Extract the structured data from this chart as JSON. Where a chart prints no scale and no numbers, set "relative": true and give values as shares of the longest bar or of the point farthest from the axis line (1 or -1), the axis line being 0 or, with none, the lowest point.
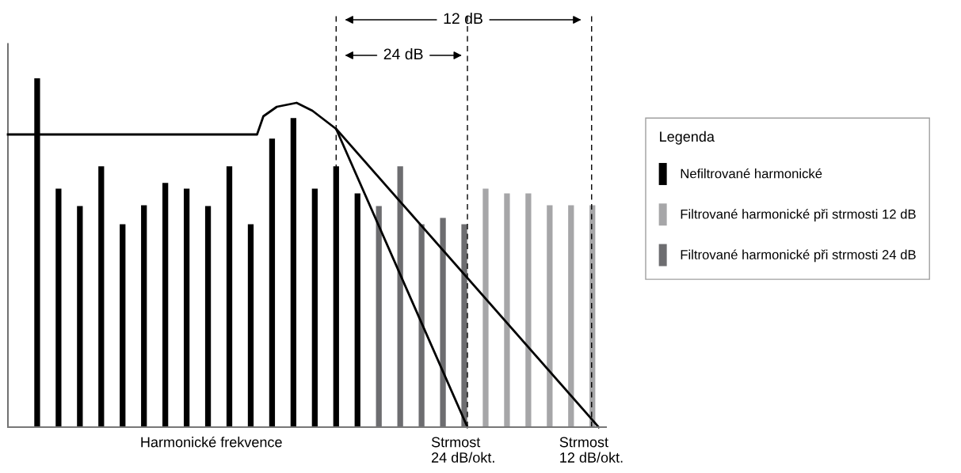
{
  "chart_data": {
    "type": "bar",
    "relative": true,
    "stacked": true,
    "xlabel": "Harmonické frekvence",
    "legend_title": "Legenda",
    "legend": "right",
    "categories": [
      null,
      null,
      null,
      null,
      null,
      null,
      null,
      null,
      null,
      null,
      null,
      null,
      null,
      null,
      null,
      null,
      null,
      null,
      null,
      null,
      null,
      null,
      null,
      null,
      null,
      null,
      null
    ],
    "series": [
      {
        "name": "Nefiltrované harmonické",
        "color": "#000000",
        "values": [
          1.0,
          0.684,
          0.634,
          0.748,
          0.582,
          0.636,
          0.7,
          0.684,
          0.634,
          0.748,
          0.582,
          0.827,
          0.886,
          0.684,
          0.748,
          0.67,
          null,
          null,
          null,
          null,
          null,
          null,
          null,
          null,
          null,
          null,
          null
        ]
      },
      {
        "name": "Filtrované harmonické při strmosti 12 dB",
        "color": "#a6a6a8",
        "values": [
          null,
          null,
          null,
          null,
          null,
          null,
          null,
          null,
          null,
          null,
          null,
          null,
          null,
          null,
          null,
          null,
          null,
          null,
          null,
          null,
          null,
          0.684,
          0.67,
          0.67,
          0.636,
          0.636,
          0.636
        ]
      },
      {
        "name": "Filtrované harmonické při strmosti 24 dB",
        "color": "#6d6d70",
        "values": [
          null,
          null,
          null,
          null,
          null,
          null,
          null,
          null,
          null,
          null,
          null,
          null,
          null,
          null,
          null,
          null,
          0.634,
          0.748,
          0.582,
          0.6,
          0.582,
          null,
          null,
          null,
          null,
          null,
          null
        ]
      }
    ],
    "annotations": [
      "12 dB",
      "24 dB",
      "Strmost\n24 dB/okt.",
      "Strmost\n12 dB/okt."
    ]
  }
}
